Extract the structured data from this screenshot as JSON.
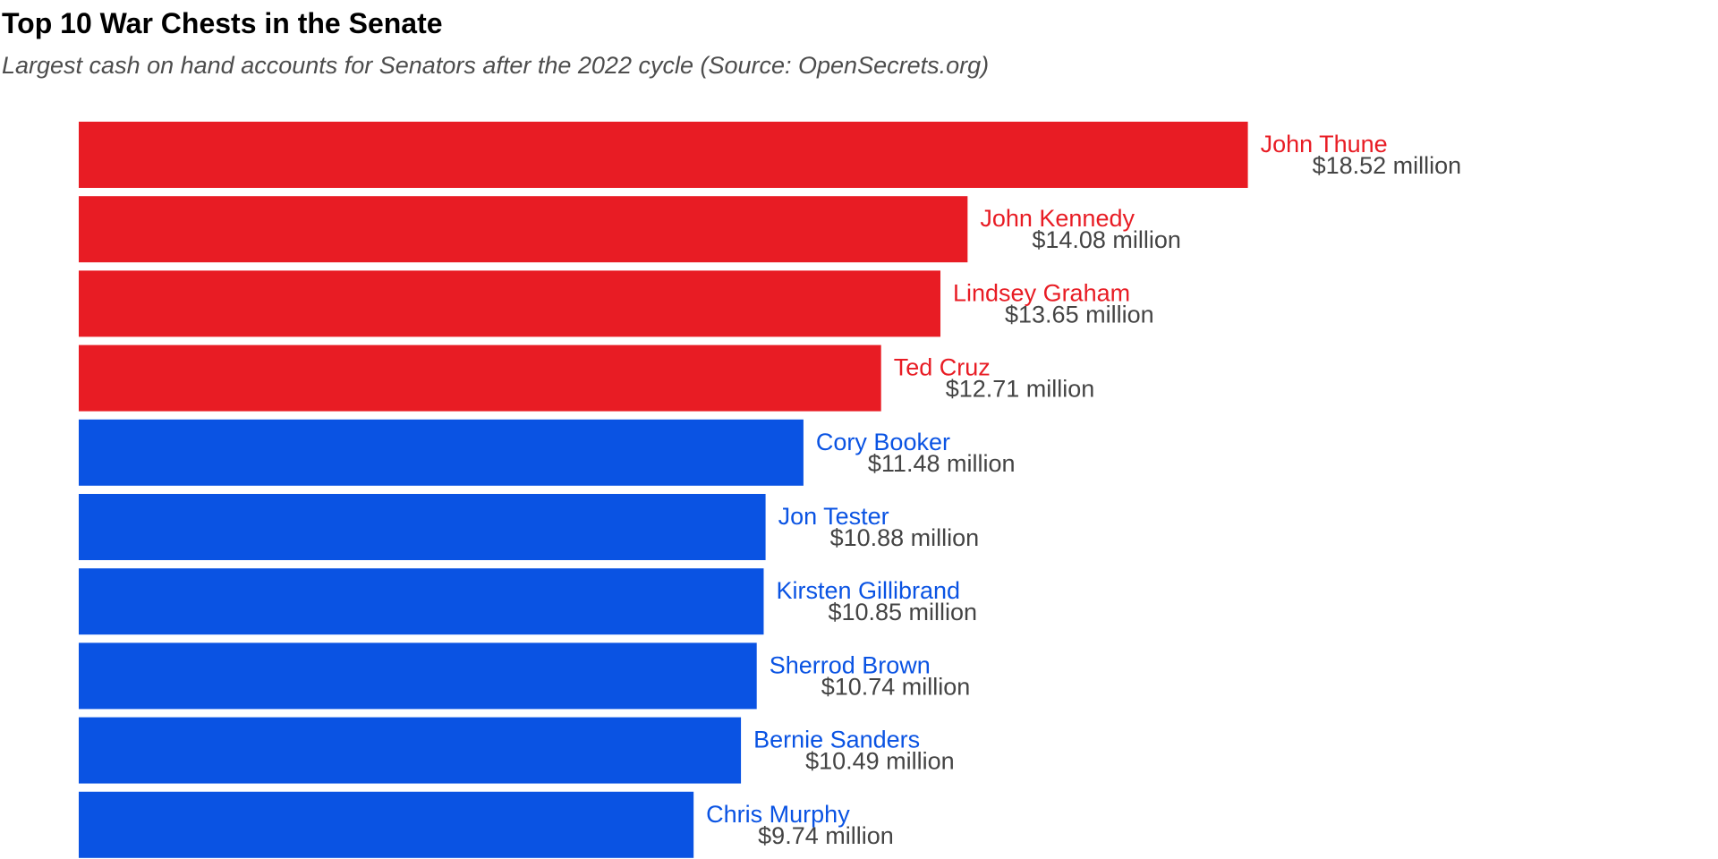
{
  "chart_data": {
    "type": "bar",
    "orientation": "horizontal",
    "title": "Top 10 War Chests in the Senate",
    "subtitle": "Largest cash on hand accounts for Senators after the 2022 cycle (Source: OpenSecrets.org)",
    "value_suffix": " million",
    "value_prefix": "$",
    "xlim": [
      0,
      23
    ],
    "grid": false,
    "legend": "none",
    "bars": [
      {
        "name": "John Thune",
        "value": 18.52,
        "party": "R",
        "label": "$18.52 million"
      },
      {
        "name": "John Kennedy",
        "value": 14.08,
        "party": "R",
        "label": "$14.08 million"
      },
      {
        "name": "Lindsey Graham",
        "value": 13.65,
        "party": "R",
        "label": "$13.65 million"
      },
      {
        "name": "Ted Cruz",
        "value": 12.71,
        "party": "R",
        "label": "$12.71 million"
      },
      {
        "name": "Cory Booker",
        "value": 11.48,
        "party": "D",
        "label": "$11.48 million"
      },
      {
        "name": "Jon Tester",
        "value": 10.88,
        "party": "D",
        "label": "$10.88 million"
      },
      {
        "name": "Kirsten Gillibrand",
        "value": 10.85,
        "party": "D",
        "label": "$10.85 million"
      },
      {
        "name": "Sherrod Brown",
        "value": 10.74,
        "party": "D",
        "label": "$10.74 million"
      },
      {
        "name": "Bernie Sanders",
        "value": 10.49,
        "party": "D",
        "label": "$10.49 million"
      },
      {
        "name": "Chris Murphy",
        "value": 9.74,
        "party": "D",
        "label": "$9.74 million"
      }
    ],
    "colors": {
      "R": "#e81c24",
      "D": "#0a53e3",
      "value_label": "#444444"
    }
  }
}
